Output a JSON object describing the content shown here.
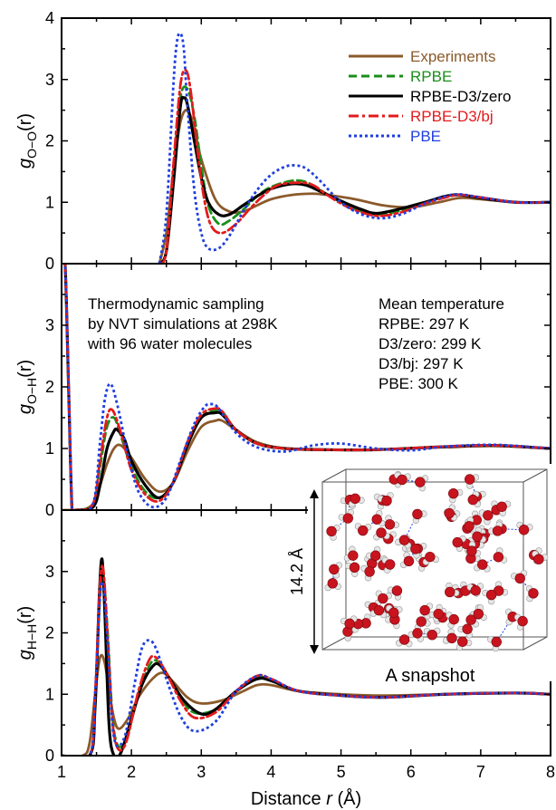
{
  "chart_data": [
    {
      "type": "line",
      "panel": "top",
      "ylabel": "g_{O−O}(r)",
      "ylabel_main": "g",
      "ylabel_sub": "O−O",
      "ylabel_tail": "(r)",
      "xlim": [
        1,
        8
      ],
      "ylim": [
        0,
        4
      ],
      "y_ticks": [
        "0",
        "1",
        "2",
        "3",
        "4"
      ],
      "legend_position": "top-right",
      "legend": [
        {
          "label": "Experiments",
          "color": "#8B5A2B",
          "style": "solid"
        },
        {
          "label": "RPBE",
          "color": "#1a8f1a",
          "style": "dashed"
        },
        {
          "label": "RPBE-D3/zero",
          "color": "#000000",
          "style": "solid"
        },
        {
          "label": "RPBE-D3/bj",
          "color": "#e31a1c",
          "style": "dashdot"
        },
        {
          "label": "PBE",
          "color": "#1f3fe0",
          "style": "dotted"
        }
      ],
      "series": [
        {
          "name": "Experiments",
          "color": "#8B5A2B",
          "style": "solid",
          "x": [
            2.4,
            2.5,
            2.6,
            2.7,
            2.8,
            2.9,
            3.0,
            3.2,
            3.4,
            3.6,
            3.8,
            4.0,
            4.3,
            4.6,
            4.8,
            5.2,
            5.6,
            6.0,
            6.4,
            6.7,
            7.0,
            7.5,
            8.0
          ],
          "values": [
            0.0,
            0.5,
            1.5,
            2.3,
            2.5,
            2.2,
            1.7,
            1.05,
            0.85,
            0.85,
            0.95,
            1.05,
            1.12,
            1.14,
            1.12,
            1.05,
            0.95,
            0.92,
            1.0,
            1.07,
            1.05,
            1.0,
            1.0
          ]
        },
        {
          "name": "RPBE",
          "color": "#1a8f1a",
          "style": "dashed",
          "x": [
            2.4,
            2.5,
            2.6,
            2.7,
            2.8,
            2.9,
            3.0,
            3.1,
            3.25,
            3.4,
            3.6,
            3.8,
            4.0,
            4.3,
            4.5,
            4.7,
            5.0,
            5.3,
            5.5,
            5.8,
            6.2,
            6.5,
            6.7,
            7.0,
            7.5,
            8.0
          ],
          "values": [
            0.0,
            0.2,
            1.5,
            2.7,
            2.85,
            2.4,
            1.6,
            0.95,
            0.65,
            0.7,
            0.88,
            1.1,
            1.25,
            1.35,
            1.33,
            1.2,
            1.0,
            0.85,
            0.8,
            0.85,
            1.0,
            1.1,
            1.12,
            1.08,
            1.0,
            1.0
          ]
        },
        {
          "name": "RPBE-D3/zero",
          "color": "#000000",
          "style": "solid",
          "x": [
            2.4,
            2.5,
            2.6,
            2.7,
            2.75,
            2.8,
            2.9,
            3.0,
            3.1,
            3.25,
            3.4,
            3.6,
            3.8,
            4.0,
            4.3,
            4.5,
            4.7,
            5.0,
            5.3,
            5.5,
            5.8,
            6.2,
            6.5,
            6.7,
            7.0,
            7.5,
            8.0
          ],
          "values": [
            0.0,
            0.2,
            1.3,
            2.55,
            2.7,
            2.6,
            2.0,
            1.4,
            1.0,
            0.8,
            0.8,
            0.95,
            1.1,
            1.22,
            1.3,
            1.28,
            1.18,
            1.02,
            0.88,
            0.82,
            0.88,
            1.0,
            1.1,
            1.12,
            1.07,
            1.0,
            1.0
          ]
        },
        {
          "name": "RPBE-D3/bj",
          "color": "#e31a1c",
          "style": "dashdot",
          "x": [
            2.4,
            2.5,
            2.6,
            2.7,
            2.78,
            2.85,
            2.95,
            3.05,
            3.15,
            3.3,
            3.5,
            3.7,
            3.9,
            4.1,
            4.4,
            4.6,
            4.8,
            5.1,
            5.4,
            5.6,
            5.9,
            6.2,
            6.5,
            6.7,
            7.0,
            7.5,
            8.0
          ],
          "values": [
            0.0,
            0.2,
            1.6,
            2.9,
            3.15,
            2.8,
            1.8,
            1.0,
            0.6,
            0.5,
            0.65,
            0.9,
            1.12,
            1.28,
            1.32,
            1.28,
            1.12,
            0.92,
            0.8,
            0.78,
            0.85,
            0.98,
            1.08,
            1.12,
            1.08,
            1.0,
            1.0
          ]
        },
        {
          "name": "PBE",
          "color": "#1f3fe0",
          "style": "dotted",
          "x": [
            2.4,
            2.5,
            2.6,
            2.65,
            2.7,
            2.75,
            2.8,
            2.9,
            3.0,
            3.1,
            3.25,
            3.4,
            3.6,
            3.8,
            4.0,
            4.2,
            4.35,
            4.5,
            4.7,
            5.0,
            5.3,
            5.6,
            5.9,
            6.2,
            6.5,
            6.7,
            7.0,
            7.5,
            8.0
          ],
          "values": [
            0.0,
            0.8,
            2.9,
            3.6,
            3.75,
            3.5,
            2.6,
            1.2,
            0.5,
            0.25,
            0.25,
            0.45,
            0.85,
            1.2,
            1.45,
            1.58,
            1.6,
            1.55,
            1.35,
            1.0,
            0.8,
            0.74,
            0.82,
            0.98,
            1.1,
            1.13,
            1.08,
            1.0,
            1.0
          ]
        }
      ]
    },
    {
      "type": "line",
      "panel": "middle",
      "ylabel": "g_{O−H}(r)",
      "ylabel_main": "g",
      "ylabel_sub": "O−H",
      "ylabel_tail": "(r)",
      "xlim": [
        1,
        8
      ],
      "ylim": [
        0,
        4
      ],
      "y_ticks": [
        "0",
        "1",
        "2",
        "3"
      ],
      "annotation_left": [
        "Thermodynamic sampling",
        "by NVT simulations at 298K",
        "with 96 water molecules"
      ],
      "annotation_right_title": "Mean temperature",
      "annotation_right_title_color": "#8B5A2B",
      "annotation_right": [
        {
          "text": "RPBE: 297 K",
          "color": "#1a8f1a"
        },
        {
          "text": "D3/zero: 299 K",
          "color": "#000000"
        },
        {
          "text": "D3/bj: 297 K",
          "color": "#e31a1c"
        },
        {
          "text": "PBE: 300 K",
          "color": "#1f3fe0"
        }
      ],
      "series": [
        {
          "name": "Experiments",
          "color": "#8B5A2B",
          "style": "solid",
          "x": [
            1.0,
            1.05,
            1.1,
            1.2,
            1.3,
            1.45,
            1.55,
            1.65,
            1.75,
            1.85,
            2.0,
            2.2,
            2.4,
            2.6,
            2.8,
            3.0,
            3.2,
            3.3,
            3.5,
            3.8,
            4.2,
            4.8,
            5.5,
            6.5,
            7.2,
            8.0
          ],
          "values": [
            0.0,
            0.0,
            0.0,
            0.0,
            0.0,
            0.1,
            0.4,
            0.75,
            1.0,
            1.05,
            0.85,
            0.5,
            0.3,
            0.45,
            0.95,
            1.35,
            1.45,
            1.45,
            1.3,
            1.1,
            1.0,
            0.98,
            0.98,
            1.02,
            1.04,
            1.0
          ]
        },
        {
          "name": "RPBE",
          "color": "#1a8f1a",
          "style": "dashed",
          "x": [
            1.0,
            1.05,
            1.1,
            1.15,
            1.2,
            1.45,
            1.55,
            1.65,
            1.75,
            1.85,
            2.0,
            2.2,
            2.4,
            2.6,
            2.8,
            3.0,
            3.2,
            3.3,
            3.5,
            3.8,
            4.2,
            4.8,
            5.5,
            6.5,
            7.2,
            8.0
          ],
          "values": [
            4.0,
            4.0,
            2.0,
            0.0,
            0.0,
            0.1,
            0.7,
            1.35,
            1.5,
            1.2,
            0.7,
            0.3,
            0.2,
            0.45,
            1.05,
            1.5,
            1.62,
            1.6,
            1.3,
            1.08,
            1.0,
            0.98,
            0.98,
            1.03,
            1.05,
            1.0
          ]
        },
        {
          "name": "RPBE-D3/zero",
          "color": "#000000",
          "style": "solid",
          "x": [
            1.0,
            1.05,
            1.1,
            1.15,
            1.2,
            1.45,
            1.55,
            1.65,
            1.75,
            1.8,
            1.9,
            2.0,
            2.2,
            2.4,
            2.6,
            2.8,
            3.0,
            3.2,
            3.3,
            3.5,
            3.8,
            4.2,
            4.8,
            5.5,
            6.5,
            7.2,
            8.0
          ],
          "values": [
            4.0,
            4.0,
            2.0,
            0.0,
            0.0,
            0.05,
            0.4,
            1.0,
            1.28,
            1.3,
            1.15,
            0.8,
            0.4,
            0.2,
            0.45,
            1.05,
            1.5,
            1.58,
            1.55,
            1.3,
            1.08,
            1.0,
            0.98,
            0.98,
            1.03,
            1.05,
            1.0
          ]
        },
        {
          "name": "RPBE-D3/bj",
          "color": "#e31a1c",
          "style": "dashdot",
          "x": [
            1.0,
            1.05,
            1.1,
            1.15,
            1.2,
            1.45,
            1.55,
            1.65,
            1.73,
            1.85,
            2.0,
            2.2,
            2.4,
            2.6,
            2.8,
            3.0,
            3.2,
            3.3,
            3.5,
            3.8,
            4.2,
            4.8,
            5.5,
            6.5,
            7.2,
            8.0
          ],
          "values": [
            4.0,
            4.0,
            2.0,
            0.0,
            0.0,
            0.1,
            0.8,
            1.5,
            1.62,
            1.25,
            0.65,
            0.25,
            0.15,
            0.45,
            1.1,
            1.55,
            1.65,
            1.6,
            1.3,
            1.08,
            1.0,
            0.98,
            0.98,
            1.03,
            1.05,
            1.0
          ]
        },
        {
          "name": "PBE",
          "color": "#1f3fe0",
          "style": "dotted",
          "x": [
            1.0,
            1.05,
            1.1,
            1.15,
            1.2,
            1.45,
            1.55,
            1.62,
            1.7,
            1.8,
            1.95,
            2.1,
            2.3,
            2.5,
            2.7,
            2.9,
            3.05,
            3.15,
            3.25,
            3.5,
            3.8,
            4.2,
            4.6,
            5.0,
            5.5,
            6.0,
            6.5,
            7.2,
            8.0
          ],
          "values": [
            4.0,
            4.0,
            2.0,
            0.0,
            0.0,
            0.1,
            1.1,
            1.8,
            2.05,
            1.7,
            0.9,
            0.3,
            0.05,
            0.2,
            0.8,
            1.4,
            1.68,
            1.72,
            1.65,
            1.25,
            1.02,
            0.95,
            1.05,
            1.08,
            1.0,
            0.97,
            1.03,
            1.06,
            1.0
          ]
        }
      ]
    },
    {
      "type": "line",
      "panel": "bottom",
      "ylabel": "g_{H−H}(r)",
      "ylabel_main": "g",
      "ylabel_sub": "H−H",
      "ylabel_tail": "(r)",
      "xlabel": "Distance r (Å)",
      "xlabel_pre": "Distance ",
      "xlabel_var": "r",
      "xlabel_post": " (Å)",
      "xlim": [
        1,
        8
      ],
      "ylim": [
        0,
        4
      ],
      "x_ticks": [
        "1",
        "2",
        "3",
        "4",
        "5",
        "6",
        "7",
        "8"
      ],
      "y_ticks": [
        "0",
        "1",
        "2",
        "3"
      ],
      "inset_caption": "A snapshot",
      "inset_dimension": "14.2 Å",
      "series": [
        {
          "name": "Experiments",
          "color": "#8B5A2B",
          "style": "solid",
          "x": [
            1.0,
            1.3,
            1.4,
            1.48,
            1.55,
            1.62,
            1.7,
            1.8,
            1.95,
            2.1,
            2.3,
            2.45,
            2.6,
            2.8,
            3.0,
            3.3,
            3.6,
            3.8,
            4.0,
            4.4,
            5.0,
            5.6,
            6.5,
            7.5,
            8.0
          ],
          "values": [
            0.0,
            0.0,
            0.2,
            1.0,
            1.6,
            1.5,
            0.9,
            0.45,
            0.6,
            0.95,
            1.25,
            1.35,
            1.2,
            0.95,
            0.85,
            0.9,
            1.05,
            1.15,
            1.15,
            1.05,
            1.0,
            0.98,
            1.0,
            1.02,
            1.0
          ]
        },
        {
          "name": "RPBE",
          "color": "#1a8f1a",
          "style": "dashed",
          "x": [
            1.0,
            1.4,
            1.48,
            1.55,
            1.6,
            1.66,
            1.75,
            1.9,
            2.1,
            2.25,
            2.35,
            2.5,
            2.7,
            2.9,
            3.2,
            3.5,
            3.8,
            4.0,
            4.4,
            5.0,
            5.6,
            6.5,
            7.5,
            8.0
          ],
          "values": [
            0.0,
            0.0,
            0.9,
            2.6,
            2.9,
            2.0,
            0.4,
            0.2,
            1.0,
            1.45,
            1.55,
            1.35,
            0.95,
            0.7,
            0.75,
            1.05,
            1.28,
            1.22,
            1.05,
            0.98,
            0.95,
            1.0,
            1.02,
            1.0
          ]
        },
        {
          "name": "RPBE-D3/zero",
          "color": "#000000",
          "style": "solid",
          "x": [
            1.0,
            1.4,
            1.48,
            1.54,
            1.58,
            1.62,
            1.68,
            1.75,
            1.85,
            2.0,
            2.15,
            2.3,
            2.4,
            2.55,
            2.75,
            3.0,
            3.2,
            3.5,
            3.8,
            4.0,
            4.4,
            5.0,
            5.6,
            6.5,
            7.5,
            8.0
          ],
          "values": [
            0.0,
            0.0,
            0.8,
            2.6,
            3.2,
            2.3,
            0.5,
            0.0,
            0.05,
            0.6,
            1.15,
            1.45,
            1.48,
            1.25,
            0.9,
            0.68,
            0.75,
            1.05,
            1.25,
            1.22,
            1.05,
            0.98,
            0.95,
            1.0,
            1.02,
            1.0
          ]
        },
        {
          "name": "RPBE-D3/bj",
          "color": "#e31a1c",
          "style": "dashdot",
          "x": [
            1.0,
            1.4,
            1.48,
            1.55,
            1.6,
            1.66,
            1.75,
            1.9,
            2.1,
            2.25,
            2.35,
            2.5,
            2.7,
            2.9,
            3.2,
            3.5,
            3.8,
            4.0,
            4.4,
            5.0,
            5.6,
            6.5,
            7.5,
            8.0
          ],
          "values": [
            0.0,
            0.0,
            1.0,
            2.8,
            3.0,
            1.9,
            0.35,
            0.15,
            1.05,
            1.55,
            1.6,
            1.35,
            0.9,
            0.62,
            0.7,
            1.05,
            1.3,
            1.25,
            1.05,
            0.98,
            0.95,
            1.0,
            1.02,
            1.0
          ]
        },
        {
          "name": "PBE",
          "color": "#1f3fe0",
          "style": "dotted",
          "x": [
            1.0,
            1.4,
            1.48,
            1.55,
            1.6,
            1.66,
            1.75,
            1.9,
            2.05,
            2.15,
            2.25,
            2.35,
            2.5,
            2.7,
            2.9,
            3.2,
            3.5,
            3.8,
            4.0,
            4.4,
            5.0,
            5.6,
            6.5,
            7.5,
            8.0
          ],
          "values": [
            0.0,
            0.0,
            1.0,
            2.6,
            2.75,
            1.8,
            0.3,
            0.3,
            1.2,
            1.75,
            1.88,
            1.75,
            1.25,
            0.65,
            0.4,
            0.55,
            1.05,
            1.3,
            1.25,
            1.05,
            0.98,
            0.95,
            1.0,
            1.02,
            1.0
          ]
        }
      ]
    }
  ]
}
